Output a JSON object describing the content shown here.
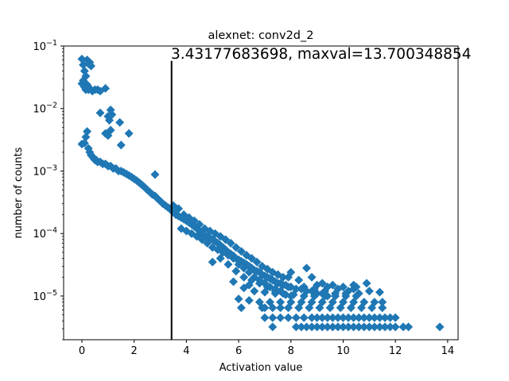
{
  "chart_data": {
    "type": "scatter",
    "title": "alexnet: conv2d_2",
    "xlabel": "Activation value",
    "ylabel": "number of counts",
    "xlim": [
      -0.7,
      14.4
    ],
    "ylim": [
      2e-06,
      0.1
    ],
    "yscale": "log",
    "x_ticks": [
      0,
      2,
      4,
      6,
      8,
      10,
      12,
      14
    ],
    "y_ticks": [
      {
        "value": 1e-05,
        "base": "10",
        "exp": "−5"
      },
      {
        "value": 0.0001,
        "base": "10",
        "exp": "−4"
      },
      {
        "value": 0.001,
        "base": "10",
        "exp": "−3"
      },
      {
        "value": 0.01,
        "base": "10",
        "exp": "−2"
      },
      {
        "value": 0.1,
        "base": "10",
        "exp": "−1"
      }
    ],
    "marker": "diamond",
    "color": "#1f77b4",
    "vline": {
      "x": 3.43177683698,
      "y_top": 0.058,
      "color": "#000000"
    },
    "annotation": "3.43177683698, maxval=13.700348854",
    "points": [
      [
        0.0,
        0.062
      ],
      [
        0.05,
        0.05
      ],
      [
        0.1,
        0.04
      ],
      [
        0.15,
        0.033
      ],
      [
        0.2,
        0.06
      ],
      [
        0.25,
        0.052
      ],
      [
        0.3,
        0.055
      ],
      [
        0.35,
        0.048
      ],
      [
        0.0,
        0.025
      ],
      [
        0.05,
        0.028
      ],
      [
        0.1,
        0.022
      ],
      [
        0.15,
        0.02
      ],
      [
        0.2,
        0.024
      ],
      [
        0.25,
        0.02
      ],
      [
        0.3,
        0.021
      ],
      [
        0.35,
        0.02
      ],
      [
        0.4,
        0.019
      ],
      [
        0.5,
        0.02
      ],
      [
        0.6,
        0.02
      ],
      [
        0.7,
        0.019
      ],
      [
        0.9,
        0.021
      ],
      [
        0.7,
        0.0085
      ],
      [
        1.0,
        0.0075
      ],
      [
        1.05,
        0.0065
      ],
      [
        1.1,
        0.0095
      ],
      [
        1.15,
        0.008
      ],
      [
        1.45,
        0.006
      ],
      [
        1.5,
        0.0026
      ],
      [
        1.8,
        0.004
      ],
      [
        0.9,
        0.004
      ],
      [
        1.0,
        0.0037
      ],
      [
        1.1,
        0.0045
      ],
      [
        0.0,
        0.0027
      ],
      [
        0.1,
        0.0028
      ],
      [
        0.15,
        0.0035
      ],
      [
        0.2,
        0.0043
      ],
      [
        0.25,
        0.0023
      ],
      [
        0.3,
        0.002
      ],
      [
        0.35,
        0.0018
      ],
      [
        0.4,
        0.0017
      ],
      [
        0.45,
        0.0016
      ],
      [
        0.5,
        0.0015
      ],
      [
        0.55,
        0.0015
      ],
      [
        0.6,
        0.0014
      ],
      [
        0.7,
        0.0014
      ],
      [
        0.8,
        0.0013
      ],
      [
        0.9,
        0.0013
      ],
      [
        1.0,
        0.0012
      ],
      [
        1.1,
        0.0012
      ],
      [
        1.2,
        0.0011
      ],
      [
        1.3,
        0.0011
      ],
      [
        1.4,
        0.001
      ],
      [
        1.5,
        0.001
      ],
      [
        1.6,
        0.00095
      ],
      [
        1.7,
        0.0009
      ],
      [
        1.8,
        0.00085
      ],
      [
        1.9,
        0.0008
      ],
      [
        2.0,
        0.00075
      ],
      [
        2.1,
        0.0007
      ],
      [
        2.2,
        0.00065
      ],
      [
        2.3,
        0.0006
      ],
      [
        2.4,
        0.00055
      ],
      [
        2.5,
        0.0005
      ],
      [
        2.6,
        0.00046
      ],
      [
        2.7,
        0.00042
      ],
      [
        2.8,
        0.0004
      ],
      [
        2.8,
        0.00088
      ],
      [
        2.9,
        0.00036
      ],
      [
        3.0,
        0.00033
      ],
      [
        3.1,
        0.0003
      ],
      [
        3.2,
        0.00028
      ],
      [
        3.3,
        0.00026
      ],
      [
        3.4,
        0.00024
      ],
      [
        3.5,
        0.00022
      ],
      [
        3.6,
        0.0002
      ],
      [
        3.7,
        0.00019
      ],
      [
        3.8,
        0.00018
      ],
      [
        3.9,
        0.00017
      ],
      [
        4.0,
        0.00016
      ],
      [
        4.1,
        0.00015
      ],
      [
        4.2,
        0.00014
      ],
      [
        4.3,
        0.00013
      ],
      [
        4.4,
        0.00012
      ],
      [
        4.5,
        0.00011
      ],
      [
        4.6,
        0.0001
      ],
      [
        4.7,
        9.5e-05
      ],
      [
        4.8,
        9e-05
      ],
      [
        4.9,
        8.5e-05
      ],
      [
        5.0,
        8e-05
      ],
      [
        5.1,
        7.5e-05
      ],
      [
        5.2,
        7e-05
      ],
      [
        5.3,
        6.5e-05
      ],
      [
        5.4,
        6e-05
      ],
      [
        5.5,
        5.5e-05
      ],
      [
        5.6,
        5e-05
      ],
      [
        5.7,
        4.7e-05
      ],
      [
        5.8,
        4.4e-05
      ],
      [
        5.9,
        4e-05
      ],
      [
        6.0,
        3.8e-05
      ],
      [
        6.1,
        3.6e-05
      ],
      [
        6.2,
        3.4e-05
      ],
      [
        6.3,
        3.2e-05
      ],
      [
        6.4,
        3e-05
      ],
      [
        6.5,
        2.8e-05
      ],
      [
        6.6,
        2.6e-05
      ],
      [
        6.7,
        2.5e-05
      ],
      [
        6.8,
        2.4e-05
      ],
      [
        6.9,
        2.2e-05
      ],
      [
        7.0,
        2.1e-05
      ],
      [
        7.1,
        2e-05
      ],
      [
        7.2,
        1.9e-05
      ],
      [
        7.3,
        1.8e-05
      ],
      [
        7.4,
        1.7e-05
      ],
      [
        7.5,
        1.6e-05
      ],
      [
        7.6,
        1.6e-05
      ],
      [
        7.7,
        1.5e-05
      ],
      [
        7.8,
        1.5e-05
      ],
      [
        7.9,
        1.4e-05
      ],
      [
        8.0,
        1.4e-05
      ],
      [
        8.2,
        1.3e-05
      ],
      [
        8.4,
        1.3e-05
      ],
      [
        8.6,
        1.2e-05
      ],
      [
        8.8,
        1.2e-05
      ],
      [
        9.0,
        1.1e-05
      ],
      [
        9.2,
        1.1e-05
      ],
      [
        9.4,
        1e-05
      ],
      [
        3.5,
        0.00028
      ],
      [
        3.7,
        0.00025
      ],
      [
        3.9,
        0.0002
      ],
      [
        4.1,
        0.00018
      ],
      [
        4.3,
        0.00016
      ],
      [
        4.5,
        0.00014
      ],
      [
        4.7,
        0.00012
      ],
      [
        4.9,
        0.00011
      ],
      [
        5.1,
        0.0001
      ],
      [
        5.3,
        9e-05
      ],
      [
        5.5,
        8e-05
      ],
      [
        5.7,
        7e-05
      ],
      [
        5.9,
        6e-05
      ],
      [
        6.1,
        5.2e-05
      ],
      [
        6.3,
        4.5e-05
      ],
      [
        6.5,
        4e-05
      ],
      [
        6.7,
        3.5e-05
      ],
      [
        6.9,
        3e-05
      ],
      [
        7.1,
        2.7e-05
      ],
      [
        7.3,
        2.4e-05
      ],
      [
        7.5,
        2.2e-05
      ],
      [
        7.7,
        2e-05
      ],
      [
        3.8,
        0.00012
      ],
      [
        4.0,
        0.00011
      ],
      [
        4.2,
        0.0001
      ],
      [
        4.4,
        9e-05
      ],
      [
        4.6,
        8e-05
      ],
      [
        4.8,
        7e-05
      ],
      [
        5.0,
        6e-05
      ],
      [
        5.2,
        5.5e-05
      ],
      [
        5.4,
        5e-05
      ],
      [
        5.6,
        4.5e-05
      ],
      [
        5.8,
        4e-05
      ],
      [
        6.0,
        3.2e-05
      ],
      [
        6.2,
        2.8e-05
      ],
      [
        6.4,
        2.4e-05
      ],
      [
        6.6,
        2e-05
      ],
      [
        6.8,
        1.8e-05
      ],
      [
        7.0,
        1.6e-05
      ],
      [
        7.2,
        1.4e-05
      ],
      [
        7.4,
        1.3e-05
      ],
      [
        7.6,
        1.2e-05
      ],
      [
        5.0,
        3.5e-05
      ],
      [
        5.3,
        4e-05
      ],
      [
        5.6,
        3.2e-05
      ],
      [
        5.9,
        2.5e-05
      ],
      [
        6.2,
        2e-05
      ],
      [
        6.5,
        1.8e-05
      ],
      [
        6.8,
        1.6e-05
      ],
      [
        7.1,
        1.4e-05
      ],
      [
        7.4,
        1.2e-05
      ],
      [
        7.7,
        1.1e-05
      ],
      [
        8.0,
        1e-05
      ],
      [
        5.8,
        1.7e-05
      ],
      [
        6.4,
        1.5e-05
      ],
      [
        7.5,
        2.2e-05
      ],
      [
        7.9,
        2e-05
      ],
      [
        8.3,
        1.8e-05
      ],
      [
        8.6,
        2.8e-05
      ],
      [
        9.0,
        1.5e-05
      ],
      [
        9.4,
        1.4e-05
      ],
      [
        9.8,
        1.3e-05
      ],
      [
        10.2,
        1.2e-05
      ],
      [
        10.6,
        1.1e-05
      ],
      [
        10.9,
        1.6e-05
      ],
      [
        6.2,
        1.35e-05
      ],
      [
        6.6,
        1.2e-05
      ],
      [
        7.0,
        1.15e-05
      ],
      [
        7.4,
        1.1e-05
      ],
      [
        7.8,
        1.05e-05
      ],
      [
        8.1,
        1.05e-05
      ],
      [
        8.5,
        1e-05
      ],
      [
        8.9,
        1e-05
      ],
      [
        9.3,
        1e-05
      ],
      [
        9.7,
        1e-05
      ],
      [
        10.1,
        1e-05
      ],
      [
        10.5,
        1e-05
      ],
      [
        6.0,
        9e-06
      ],
      [
        6.4,
        8.5e-06
      ],
      [
        6.8,
        8e-06
      ],
      [
        7.2,
        8e-06
      ],
      [
        7.6,
        8e-06
      ],
      [
        8.0,
        8e-06
      ],
      [
        8.4,
        8e-06
      ],
      [
        8.8,
        8e-06
      ],
      [
        9.2,
        8e-06
      ],
      [
        9.6,
        8e-06
      ],
      [
        10.0,
        8e-06
      ],
      [
        10.4,
        8e-06
      ],
      [
        10.8,
        8e-06
      ],
      [
        11.2,
        8e-06
      ],
      [
        11.5,
        8e-06
      ],
      [
        6.1,
        6.5e-06
      ],
      [
        6.9,
        6.5e-06
      ],
      [
        7.0,
        4.5e-06
      ],
      [
        7.3,
        4.5e-06
      ],
      [
        7.6,
        4.5e-06
      ],
      [
        7.9,
        4.5e-06
      ],
      [
        8.2,
        4.5e-06
      ],
      [
        8.5,
        4.5e-06
      ],
      [
        8.8,
        4.5e-06
      ],
      [
        9.0,
        4.5e-06
      ],
      [
        9.2,
        4.5e-06
      ],
      [
        9.4,
        4.5e-06
      ],
      [
        9.6,
        4.5e-06
      ],
      [
        9.8,
        4.5e-06
      ],
      [
        10.0,
        4.5e-06
      ],
      [
        10.2,
        4.5e-06
      ],
      [
        10.4,
        4.5e-06
      ],
      [
        10.6,
        4.5e-06
      ],
      [
        10.8,
        4.5e-06
      ],
      [
        11.0,
        4.5e-06
      ],
      [
        11.2,
        4.5e-06
      ],
      [
        11.4,
        4.5e-06
      ],
      [
        11.6,
        4.5e-06
      ],
      [
        11.8,
        4.5e-06
      ],
      [
        12.0,
        4.5e-06
      ],
      [
        7.0,
        6.5e-06
      ],
      [
        7.3,
        6.5e-06
      ],
      [
        7.6,
        6.5e-06
      ],
      [
        7.9,
        6.5e-06
      ],
      [
        8.3,
        6.5e-06
      ],
      [
        8.7,
        6.5e-06
      ],
      [
        9.1,
        6.5e-06
      ],
      [
        9.5,
        6.5e-06
      ],
      [
        9.9,
        6.5e-06
      ],
      [
        10.3,
        6.5e-06
      ],
      [
        10.7,
        6.5e-06
      ],
      [
        11.1,
        6.5e-06
      ],
      [
        11.5,
        6.5e-06
      ],
      [
        7.3,
        3.2e-06
      ],
      [
        8.2,
        3.2e-06
      ],
      [
        8.4,
        3.2e-06
      ],
      [
        8.6,
        3.2e-06
      ],
      [
        8.8,
        3.2e-06
      ],
      [
        9.0,
        3.2e-06
      ],
      [
        9.2,
        3.2e-06
      ],
      [
        9.4,
        3.2e-06
      ],
      [
        9.6,
        3.2e-06
      ],
      [
        9.8,
        3.2e-06
      ],
      [
        10.0,
        3.2e-06
      ],
      [
        10.2,
        3.2e-06
      ],
      [
        10.4,
        3.2e-06
      ],
      [
        10.6,
        3.2e-06
      ],
      [
        10.8,
        3.2e-06
      ],
      [
        11.0,
        3.2e-06
      ],
      [
        11.2,
        3.2e-06
      ],
      [
        11.4,
        3.2e-06
      ],
      [
        11.6,
        3.2e-06
      ],
      [
        11.8,
        3.2e-06
      ],
      [
        12.0,
        3.2e-06
      ],
      [
        12.3,
        3.2e-06
      ],
      [
        12.5,
        3.2e-06
      ],
      [
        13.7,
        3.2e-06
      ],
      [
        8.5,
        1.4e-05
      ],
      [
        8.9,
        1.3e-05
      ],
      [
        9.3,
        1.2e-05
      ],
      [
        9.7,
        1.1e-05
      ],
      [
        10.1,
        1.1e-05
      ],
      [
        10.5,
        1.4e-05
      ],
      [
        11.0,
        1.2e-05
      ],
      [
        11.4,
        1.15e-05
      ],
      [
        9.2,
        1.6e-05
      ],
      [
        9.6,
        1.5e-05
      ],
      [
        10.0,
        1.4e-05
      ],
      [
        10.4,
        1.3e-05
      ],
      [
        8.0,
        2.4e-05
      ],
      [
        8.8,
        2e-05
      ],
      [
        10.4,
        1.5e-05
      ]
    ]
  }
}
